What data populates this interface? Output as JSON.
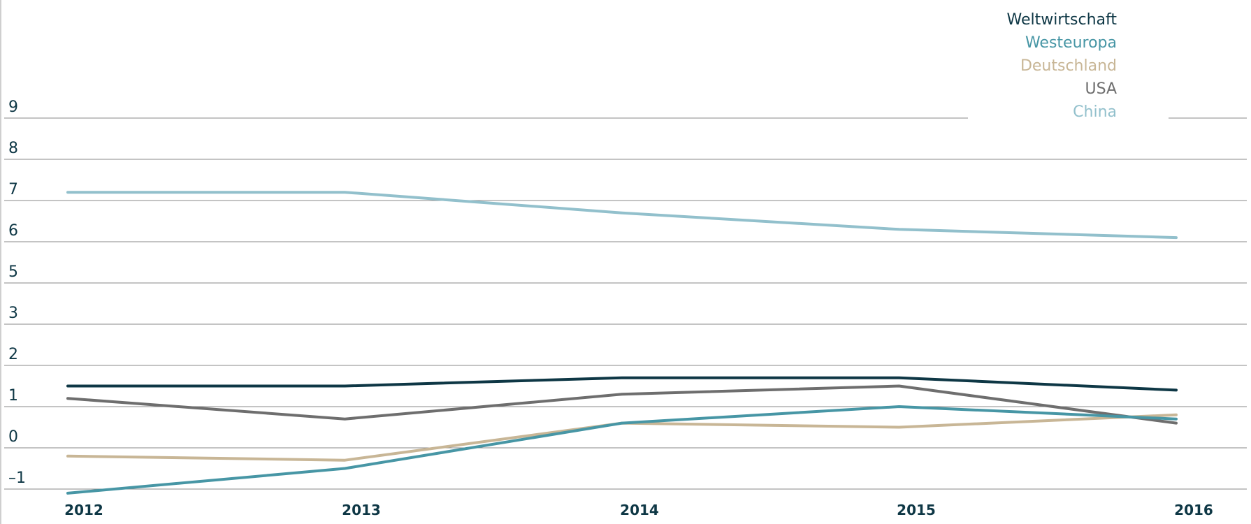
{
  "chart_data": {
    "type": "line",
    "x": [
      "2012",
      "2013",
      "2014",
      "2015",
      "2016"
    ],
    "y_ticks": [
      "9",
      "8",
      "7",
      "6",
      "5",
      "3",
      "2",
      "1",
      "0",
      "–1"
    ],
    "series": [
      {
        "name": "Weltwirtschaft",
        "color": "#0e3745",
        "values": [
          2.5,
          2.5,
          2.7,
          2.7,
          2.4
        ]
      },
      {
        "name": "Westeuropa",
        "color": "#4796a5",
        "values": [
          -0.1,
          0.5,
          1.6,
          2.0,
          1.7
        ]
      },
      {
        "name": "Deutschland",
        "color": "#c8b696",
        "values": [
          0.8,
          0.7,
          1.6,
          1.5,
          1.8
        ]
      },
      {
        "name": "USA",
        "color": "#6e6e6e",
        "values": [
          2.2,
          1.7,
          2.3,
          2.5,
          1.6
        ]
      },
      {
        "name": "China",
        "color": "#92c0cc",
        "values": [
          8.2,
          8.2,
          7.7,
          7.3,
          7.1
        ]
      }
    ],
    "legend_position": "top-right",
    "grid": true
  }
}
